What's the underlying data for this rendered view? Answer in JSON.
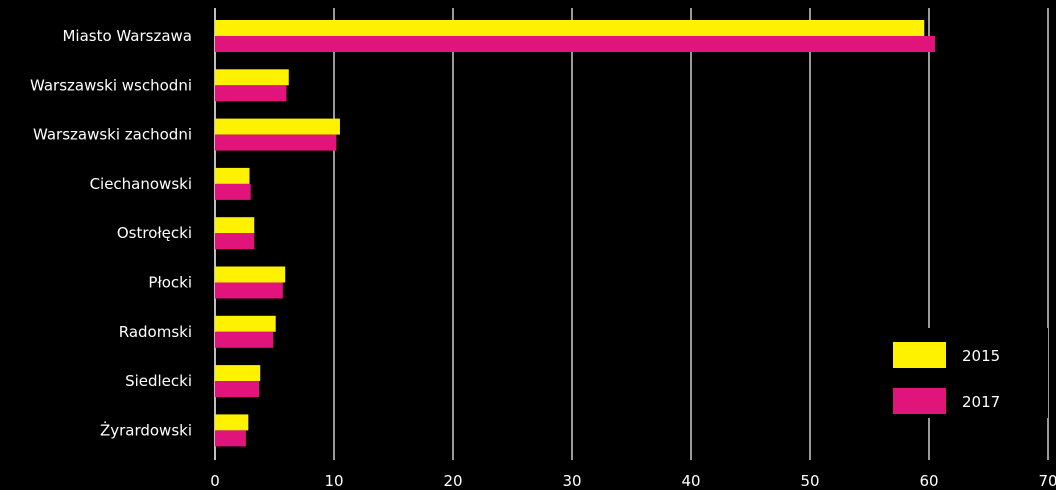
{
  "chart_data": {
    "type": "bar",
    "orientation": "horizontal",
    "categories": [
      "Miasto Warszawa",
      "Warszawski wschodni",
      "Warszawski zachodni",
      "Ciechanowski",
      "Ostrołęcki",
      "Płocki",
      "Radomski",
      "Siedlecki",
      "Żyrardowski"
    ],
    "series": [
      {
        "name": "2015",
        "color": "#FFF200",
        "values": [
          59.6,
          6.2,
          10.5,
          2.9,
          3.3,
          5.9,
          5.1,
          3.8,
          2.8
        ]
      },
      {
        "name": "2017",
        "color": "#E0147A",
        "values": [
          60.5,
          6.0,
          10.2,
          3.0,
          3.3,
          5.7,
          4.9,
          3.7,
          2.6
        ]
      }
    ],
    "xlim": [
      0,
      70
    ],
    "xticks": [
      "0",
      "10",
      "20",
      "30",
      "40",
      "50",
      "60",
      "70"
    ],
    "grid": "vertical",
    "legend_position": "bottom-right",
    "title": "",
    "xlabel": "",
    "ylabel": ""
  }
}
